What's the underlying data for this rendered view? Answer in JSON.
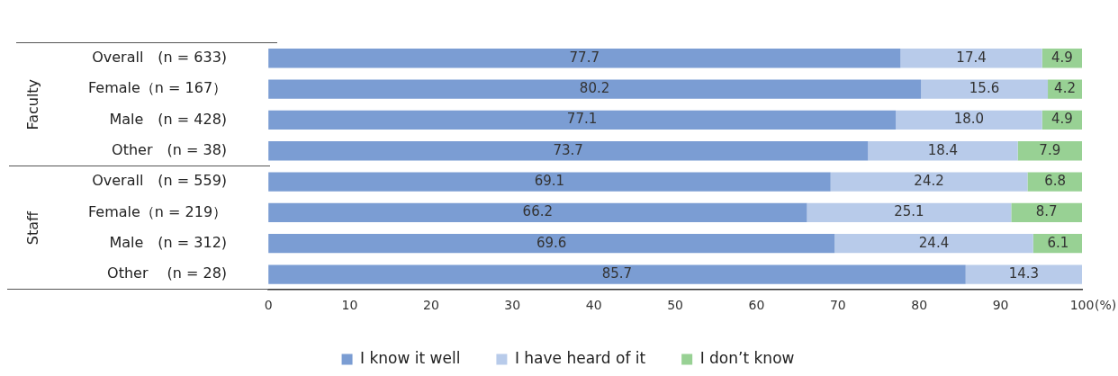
{
  "chart_data": {
    "type": "bar",
    "orientation": "horizontal",
    "stacked": true,
    "categories": [
      "Overall　(n = 633)",
      "Female（n = 167）",
      "Male　(n = 428)",
      "Other　(n = 38)",
      "Overall　(n = 559)",
      "Female（n = 219）",
      "Male　(n = 312)",
      "Other　 (n = 28)"
    ],
    "series": [
      {
        "name": "I know it well",
        "color": "#7b9dd3",
        "values": [
          77.7,
          80.2,
          77.1,
          73.7,
          69.1,
          66.2,
          69.6,
          85.7
        ]
      },
      {
        "name": "I have heard of it",
        "color": "#b8cbea",
        "values": [
          17.4,
          15.6,
          18.0,
          18.4,
          24.2,
          25.1,
          24.4,
          14.3
        ],
        "value_labels": [
          "17.4",
          "15.6",
          "18.0",
          "18.4",
          "24.2",
          "25.1",
          "24.4",
          "14.3"
        ]
      },
      {
        "name": "I don’t know",
        "color": "#98d194",
        "values": [
          4.9,
          4.2,
          4.9,
          7.9,
          6.8,
          8.7,
          6.1,
          null
        ]
      }
    ],
    "xlim": [
      0,
      100
    ],
    "xticks": [
      0,
      10,
      20,
      30,
      40,
      50,
      60,
      70,
      80,
      90,
      100
    ],
    "xlabel": "(%)",
    "annotations": [
      "Faculty",
      "Staff"
    ],
    "data_labels": true,
    "legend": "bottom",
    "grid": false
  }
}
